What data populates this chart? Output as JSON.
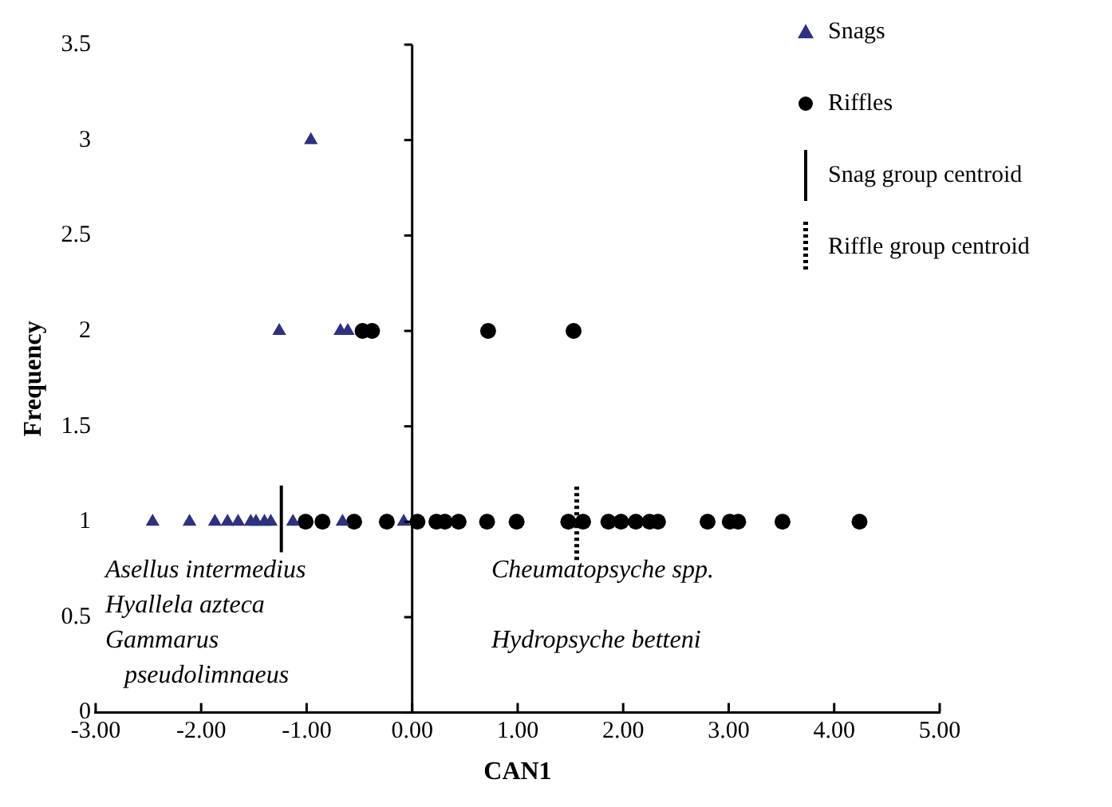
{
  "chart_data": {
    "type": "scatter",
    "xlabel": "CAN1",
    "ylabel": "Frequency",
    "series": [
      {
        "name": "Snags",
        "type": "scatter",
        "marker": "triangle",
        "color": "#2e3180",
        "x": [
          -2.46,
          -2.11,
          -1.87,
          -1.75,
          -1.65,
          -1.53,
          -1.48,
          -1.4,
          -1.34,
          -1.13,
          -0.66,
          -0.08,
          -1.26,
          -0.68,
          -0.61,
          -0.96
        ],
        "values": [
          1,
          1,
          1,
          1,
          1,
          1,
          1,
          1,
          1,
          1,
          1,
          1,
          2,
          2,
          2,
          3
        ]
      },
      {
        "name": "Riffles",
        "type": "scatter",
        "marker": "circle",
        "color": "#000000",
        "x": [
          -1.01,
          -0.85,
          -0.55,
          -0.24,
          0.05,
          0.23,
          0.31,
          0.44,
          0.71,
          0.99,
          1.48,
          1.62,
          1.86,
          1.98,
          2.12,
          2.25,
          2.33,
          2.8,
          3.01,
          3.09,
          3.51,
          4.24,
          -0.47,
          -0.38,
          0.72,
          1.53
        ],
        "values": [
          1,
          1,
          1,
          1,
          1,
          1,
          1,
          1,
          1,
          1,
          1,
          1,
          1,
          1,
          1,
          1,
          1,
          1,
          1,
          1,
          1,
          1,
          2,
          2,
          2,
          2
        ]
      },
      {
        "name": "Snag group centroid",
        "type": "line",
        "line_style": "solid",
        "color": "#000000",
        "x": [
          -1.24,
          -1.24
        ],
        "values": [
          0.84,
          1.19
        ]
      },
      {
        "name": "Riffle group centroid",
        "type": "line",
        "line_style": "dotted",
        "color": "#000000",
        "x": [
          1.56,
          1.56
        ],
        "values": [
          0.8,
          1.2
        ]
      }
    ],
    "xlim": [
      -3,
      5
    ],
    "xticks": [
      {
        "value": -3,
        "label": "-3.00"
      },
      {
        "value": -2,
        "label": "-2.00"
      },
      {
        "value": -1,
        "label": "-1.00"
      },
      {
        "value": 0,
        "label": "0.00"
      },
      {
        "value": 1,
        "label": "1.00"
      },
      {
        "value": 2,
        "label": "2.00"
      },
      {
        "value": 3,
        "label": "3.00"
      },
      {
        "value": 4,
        "label": "4.00"
      },
      {
        "value": 5,
        "label": "5.00"
      }
    ],
    "ylim": [
      0,
      3.5
    ],
    "yticks": [
      0,
      0.5,
      1,
      1.5,
      2,
      2.5,
      3,
      3.5
    ],
    "grid": false,
    "legend": "top right",
    "ref_lines": [
      {
        "axis": "x",
        "value": 0
      }
    ],
    "annotations": [
      "Asellus intermedius\nHyallela azteca\nGammarus\n  pseudolimnaeus",
      "Cheumatopsyche spp.\n\nHydropsyche betteni"
    ]
  }
}
